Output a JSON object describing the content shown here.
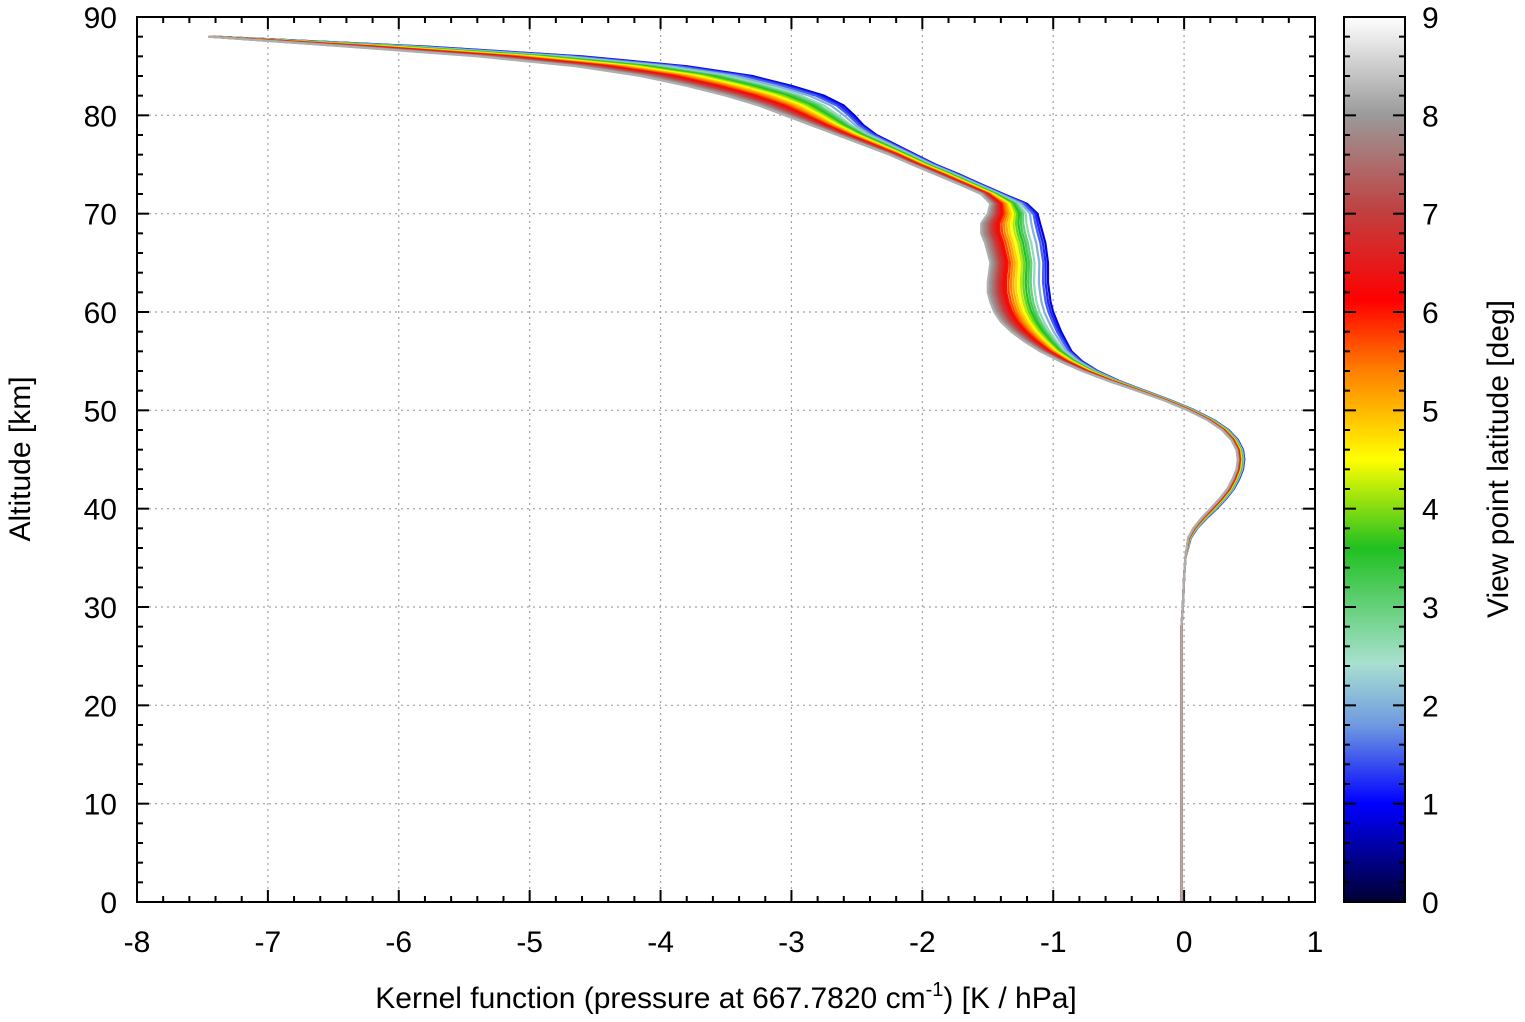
{
  "chart_data": {
    "type": "line",
    "xlabel_main": "Kernel function (pressure at 667.7820 cm",
    "xlabel_sup": "-1",
    "xlabel_tail": ") [K / hPa]",
    "ylabel": "Altitude [km]",
    "colorbar_label": "View point latitude [deg]",
    "xlim": [
      -8,
      1
    ],
    "ylim": [
      0,
      90
    ],
    "x_ticks": [
      "-8",
      "-7",
      "-6",
      "-5",
      "-4",
      "-3",
      "-2",
      "-1",
      "0",
      "1"
    ],
    "y_ticks": [
      "0",
      "10",
      "20",
      "30",
      "40",
      "50",
      "60",
      "70",
      "80",
      "90"
    ],
    "colorbar_ticks": [
      "0",
      "1",
      "2",
      "3",
      "4",
      "5",
      "6",
      "7",
      "8",
      "9"
    ],
    "colorbar_range": [
      0,
      9
    ],
    "grid": true,
    "colormap": [
      "#000030",
      "#0000ff",
      "#8ab0e0",
      "#a8e0d0",
      "#20c020",
      "#ffff00",
      "#ff8000",
      "#ff0000",
      "#9a9a9a",
      "#ffffff"
    ],
    "series_shape": {
      "altitude_km": [
        0,
        5,
        10,
        15,
        20,
        25,
        28,
        30,
        33,
        35,
        37,
        38,
        39,
        40,
        41,
        42,
        43,
        44,
        45,
        46,
        47,
        48,
        49,
        50,
        51,
        52,
        53,
        54,
        55,
        56,
        57,
        58,
        59,
        60,
        61,
        62,
        63,
        64,
        65,
        66,
        67,
        68,
        69,
        70,
        71,
        72,
        73,
        74,
        75,
        76,
        77,
        78,
        79,
        80,
        81,
        82,
        83,
        84,
        85,
        86,
        87,
        88
      ],
      "kernel_lat0": [
        -0.02,
        -0.02,
        -0.02,
        -0.02,
        -0.02,
        -0.02,
        -0.02,
        -0.01,
        0.0,
        0.01,
        0.05,
        0.1,
        0.17,
        0.25,
        0.32,
        0.38,
        0.42,
        0.45,
        0.46,
        0.45,
        0.41,
        0.34,
        0.23,
        0.08,
        -0.1,
        -0.3,
        -0.5,
        -0.66,
        -0.78,
        -0.86,
        -0.9,
        -0.94,
        -0.97,
        -1.0,
        -1.02,
        -1.03,
        -1.04,
        -1.04,
        -1.04,
        -1.05,
        -1.06,
        -1.08,
        -1.1,
        -1.12,
        -1.2,
        -1.38,
        -1.55,
        -1.72,
        -1.9,
        -2.05,
        -2.2,
        -2.35,
        -2.45,
        -2.52,
        -2.6,
        -2.75,
        -3.0,
        -3.3,
        -3.8,
        -4.6,
        -5.8,
        -7.4
      ],
      "kernel_lat8": [
        -0.02,
        -0.02,
        -0.02,
        -0.02,
        -0.02,
        -0.02,
        -0.02,
        -0.01,
        0.0,
        0.01,
        0.03,
        0.07,
        0.13,
        0.2,
        0.27,
        0.33,
        0.37,
        0.4,
        0.41,
        0.4,
        0.36,
        0.29,
        0.18,
        0.03,
        -0.15,
        -0.36,
        -0.58,
        -0.78,
        -0.95,
        -1.1,
        -1.22,
        -1.32,
        -1.4,
        -1.45,
        -1.48,
        -1.5,
        -1.5,
        -1.49,
        -1.48,
        -1.5,
        -1.52,
        -1.55,
        -1.55,
        -1.5,
        -1.48,
        -1.55,
        -1.72,
        -1.9,
        -2.08,
        -2.25,
        -2.45,
        -2.65,
        -2.85,
        -3.05,
        -3.25,
        -3.5,
        -3.8,
        -4.15,
        -4.65,
        -5.4,
        -6.4,
        -7.45
      ]
    }
  }
}
